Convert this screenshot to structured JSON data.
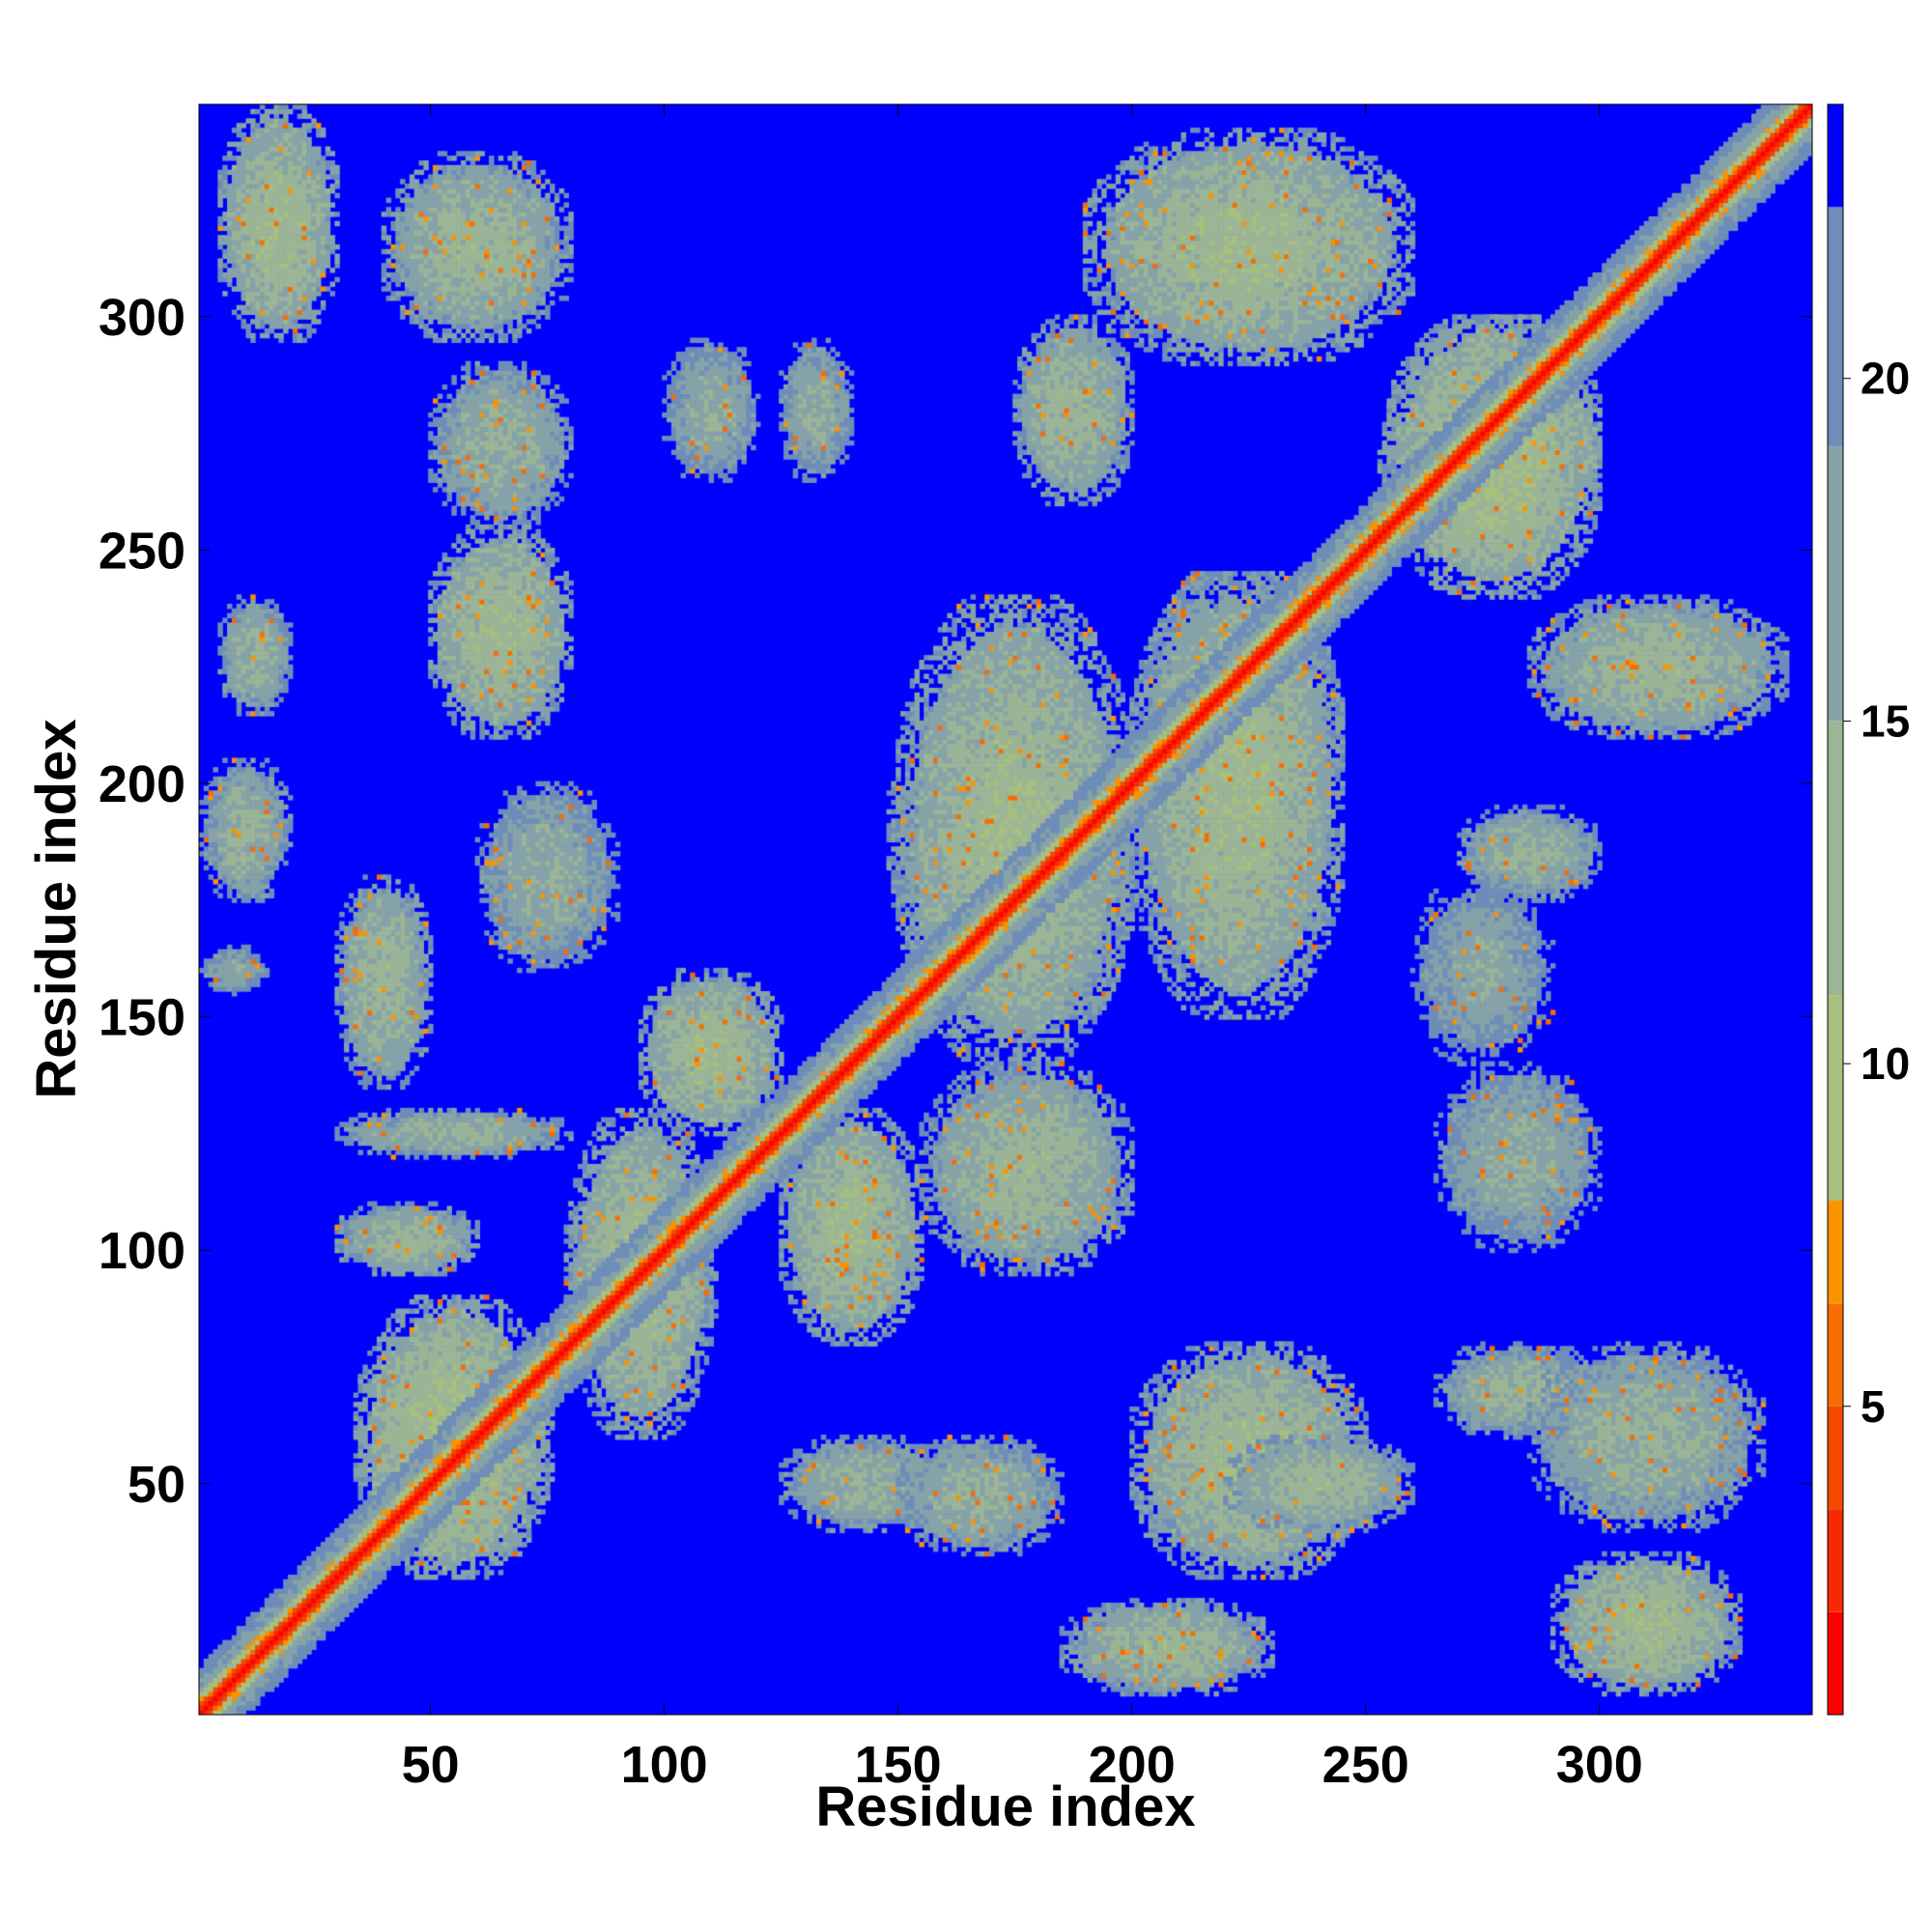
{
  "chart_data": {
    "type": "heatmap",
    "title": "",
    "xlabel": "Residue index",
    "ylabel": "Residue index",
    "xlim": [
      1,
      345
    ],
    "ylim": [
      1,
      345
    ],
    "xticks": [
      50,
      100,
      150,
      200,
      250,
      300
    ],
    "yticks": [
      50,
      100,
      150,
      200,
      250,
      300
    ],
    "xtick_labels": [
      "50",
      "100",
      "150",
      "200",
      "250",
      "300"
    ],
    "ytick_labels": [
      "50",
      "100",
      "150",
      "200",
      "250",
      "300"
    ],
    "symmetric": true,
    "colorbar": {
      "range": [
        0.5,
        24
      ],
      "ticks": [
        5,
        10,
        15,
        20
      ],
      "tick_labels": [
        "5",
        "10",
        "15",
        "20"
      ],
      "levels": [
        {
          "from": 0.5,
          "to": 2.0,
          "color": "#ff0000"
        },
        {
          "from": 2.0,
          "to": 3.5,
          "color": "#f52a00"
        },
        {
          "from": 3.5,
          "to": 5.0,
          "color": "#f44a00"
        },
        {
          "from": 5.0,
          "to": 6.5,
          "color": "#f86c00"
        },
        {
          "from": 6.5,
          "to": 8.0,
          "color": "#fb9300"
        },
        {
          "from": 8.0,
          "to": 11.0,
          "color": "#a8c07e"
        },
        {
          "from": 11.0,
          "to": 15.0,
          "color": "#9cb596"
        },
        {
          "from": 15.0,
          "to": 19.0,
          "color": "#86a3a8"
        },
        {
          "from": 19.0,
          "to": 22.5,
          "color": "#6e8db8"
        },
        {
          "from": 22.5,
          "to": 24.0,
          "color": "#0000ff"
        }
      ]
    },
    "contact_regions": [
      {
        "i": [
          1,
          345
        ],
        "j": [
          1,
          345
        ],
        "kind": "diagonal"
      },
      {
        "i": [
          5,
          30
        ],
        "j": [
          295,
          345
        ],
        "value": 12
      },
      {
        "i": [
          40,
          80
        ],
        "j": [
          295,
          335
        ],
        "value": 13
      },
      {
        "i": [
          50,
          80
        ],
        "j": [
          255,
          290
        ],
        "value": 14
      },
      {
        "i": [
          100,
          120
        ],
        "j": [
          265,
          295
        ],
        "value": 15
      },
      {
        "i": [
          125,
          140
        ],
        "j": [
          265,
          295
        ],
        "value": 15
      },
      {
        "i": [
          175,
          200
        ],
        "j": [
          260,
          300
        ],
        "value": 13
      },
      {
        "i": [
          190,
          260
        ],
        "j": [
          290,
          340
        ],
        "value": 12
      },
      {
        "i": [
          50,
          80
        ],
        "j": [
          210,
          255
        ],
        "value": 12
      },
      {
        "i": [
          5,
          20
        ],
        "j": [
          215,
          240
        ],
        "value": 14
      },
      {
        "i": [
          1,
          20
        ],
        "j": [
          175,
          205
        ],
        "value": 14
      },
      {
        "i": [
          1,
          15
        ],
        "j": [
          155,
          165
        ],
        "value": 16
      },
      {
        "i": [
          30,
          50
        ],
        "j": [
          135,
          180
        ],
        "value": 13
      },
      {
        "i": [
          30,
          80
        ],
        "j": [
          120,
          130
        ],
        "value": 14
      },
      {
        "i": [
          30,
          60
        ],
        "j": [
          95,
          110
        ],
        "value": 13
      },
      {
        "i": [
          35,
          75
        ],
        "j": [
          30,
          90
        ],
        "value": 11
      },
      {
        "i": [
          80,
          110
        ],
        "j": [
          60,
          130
        ],
        "value": 12
      },
      {
        "i": [
          95,
          125
        ],
        "j": [
          125,
          160
        ],
        "value": 12
      },
      {
        "i": [
          125,
          155
        ],
        "j": [
          80,
          130
        ],
        "value": 12
      },
      {
        "i": [
          125,
          160
        ],
        "j": [
          40,
          60
        ],
        "value": 14
      },
      {
        "i": [
          150,
          185
        ],
        "j": [
          35,
          60
        ],
        "value": 14
      },
      {
        "i": [
          150,
          200
        ],
        "j": [
          140,
          240
        ],
        "value": 12
      },
      {
        "i": [
          200,
          245
        ],
        "j": [
          150,
          245
        ],
        "value": 12
      },
      {
        "i": [
          200,
          250
        ],
        "j": [
          30,
          80
        ],
        "value": 12
      },
      {
        "i": [
          185,
          230
        ],
        "j": [
          5,
          25
        ],
        "value": 13
      },
      {
        "i": [
          220,
          260
        ],
        "j": [
          40,
          60
        ],
        "value": 13
      },
      {
        "i": [
          265,
          300
        ],
        "j": [
          60,
          80
        ],
        "value": 14
      },
      {
        "i": [
          265,
          300
        ],
        "j": [
          100,
          140
        ],
        "value": 15
      },
      {
        "i": [
          270,
          300
        ],
        "j": [
          175,
          195
        ],
        "value": 14
      },
      {
        "i": [
          285,
          340
        ],
        "j": [
          210,
          240
        ],
        "value": 13
      },
      {
        "i": [
          290,
          330
        ],
        "j": [
          5,
          35
        ],
        "value": 12
      },
      {
        "i": [
          285,
          335
        ],
        "j": [
          40,
          80
        ],
        "value": 14
      },
      {
        "i": [
          255,
          300
        ],
        "j": [
          240,
          300
        ],
        "value": 11
      },
      {
        "i": [
          155,
          200
        ],
        "j": [
          95,
          140
        ],
        "value": 13
      },
      {
        "i": [
          60,
          90
        ],
        "j": [
          160,
          200
        ],
        "value": 15
      },
      {
        "i": [
          260,
          290
        ],
        "j": [
          140,
          180
        ],
        "value": 16
      }
    ]
  }
}
